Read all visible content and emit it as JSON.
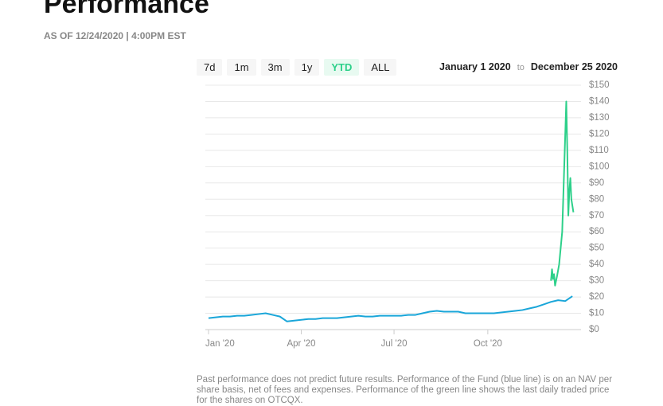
{
  "header": {
    "title": "Performance",
    "as_of": "AS OF 12/24/2020 | 4:00PM EST"
  },
  "ranges": [
    "7d",
    "1m",
    "3m",
    "1y",
    "YTD",
    "ALL"
  ],
  "date_range": {
    "from": "January 1 2020",
    "sep": "to",
    "to": "December 25 2020"
  },
  "chart_data": {
    "type": "line",
    "series": [
      {
        "color": "#1aa6d9",
        "x": [
          0,
          7,
          14,
          21,
          28,
          35,
          42,
          49,
          56,
          63,
          70,
          77,
          84,
          91,
          98,
          105,
          112,
          119,
          126,
          133,
          140,
          147,
          154,
          161,
          168,
          175,
          182,
          189,
          196,
          203,
          210,
          217,
          224,
          231,
          238,
          245,
          252,
          259,
          266,
          273,
          280,
          287,
          294,
          301,
          308,
          315,
          322,
          329,
          336,
          343,
          350,
          357
        ],
        "values": [
          7,
          7.5,
          8,
          8,
          8.5,
          8.5,
          9,
          9.5,
          10,
          9,
          8,
          5,
          5.5,
          6,
          6.5,
          6.5,
          7,
          7,
          7,
          7.5,
          8,
          8.5,
          8,
          8,
          8.5,
          8.5,
          8.5,
          8.5,
          9,
          9,
          10,
          11,
          11.5,
          11,
          11,
          11,
          10,
          10,
          10,
          10,
          10,
          10.5,
          11,
          11.5,
          12,
          13,
          14,
          15.5,
          17,
          18,
          17.5,
          20.5
        ]
      },
      {
        "color": "#2dd08a",
        "x": [
          336,
          337,
          338,
          339,
          340,
          342,
          344,
          347,
          349,
          351,
          352,
          353,
          354,
          355,
          356,
          358
        ],
        "values": [
          30,
          37,
          31,
          34,
          27,
          33,
          40,
          60,
          100,
          140,
          110,
          70,
          85,
          93,
          80,
          72
        ]
      }
    ],
    "xlim": [
      0,
      360
    ],
    "xticks": [
      {
        "value": 0,
        "label": "Jan '20"
      },
      {
        "value": 91,
        "label": "Apr '20"
      },
      {
        "value": 182,
        "label": "Jul '20"
      },
      {
        "value": 274,
        "label": "Oct '20"
      }
    ],
    "ylim": [
      0,
      150
    ],
    "yticks": [
      {
        "value": 0,
        "label": "$0"
      },
      {
        "value": 10,
        "label": "$10"
      },
      {
        "value": 20,
        "label": "$20"
      },
      {
        "value": 30,
        "label": "$30"
      },
      {
        "value": 40,
        "label": "$40"
      },
      {
        "value": 50,
        "label": "$50"
      },
      {
        "value": 60,
        "label": "$60"
      },
      {
        "value": 70,
        "label": "$70"
      },
      {
        "value": 80,
        "label": "$80"
      },
      {
        "value": 90,
        "label": "$90"
      },
      {
        "value": 100,
        "label": "$100"
      },
      {
        "value": 110,
        "label": "$110"
      },
      {
        "value": 120,
        "label": "$120"
      },
      {
        "value": 130,
        "label": "$130"
      },
      {
        "value": 140,
        "label": "$140"
      },
      {
        "value": 150,
        "label": "$150"
      }
    ],
    "grid": true
  },
  "footnote": "Past performance does not predict future results. Performance of the Fund (blue line) is on an NAV per share basis, net of fees and expenses. Performance of the green line shows the last daily traded price for the shares on OTCQX."
}
